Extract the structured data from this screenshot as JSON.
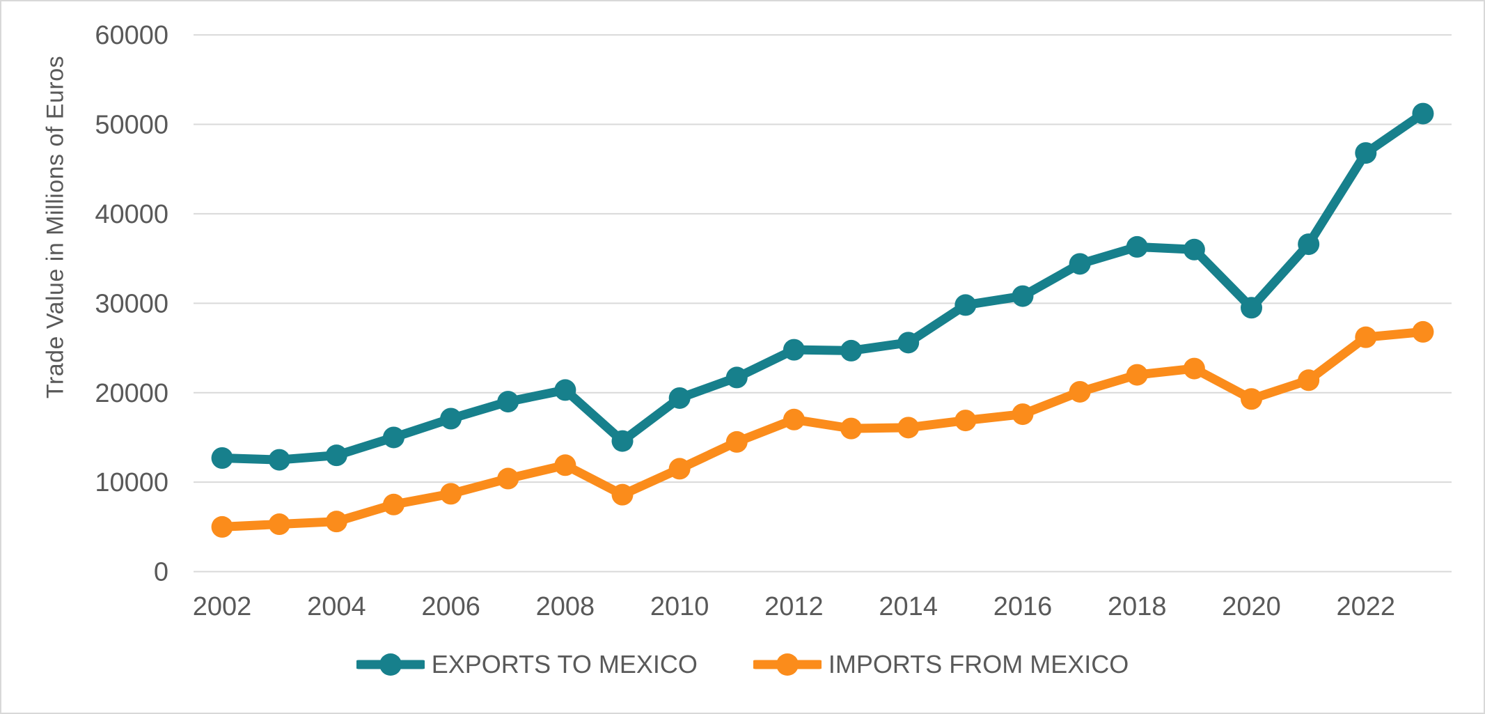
{
  "chart_data": {
    "type": "line",
    "title": "",
    "xlabel": "",
    "ylabel": "Trade Value in Millions of Euros",
    "x": [
      2002,
      2003,
      2004,
      2005,
      2006,
      2007,
      2008,
      2009,
      2010,
      2011,
      2012,
      2013,
      2014,
      2015,
      2016,
      2017,
      2018,
      2019,
      2020,
      2021,
      2022,
      2023
    ],
    "x_tick_labels": [
      "2002",
      "2004",
      "2006",
      "2008",
      "2010",
      "2012",
      "2014",
      "2016",
      "2018",
      "2020",
      "2022"
    ],
    "y_ticks": [
      0,
      10000,
      20000,
      30000,
      40000,
      50000,
      60000
    ],
    "ylim": [
      0,
      60000
    ],
    "grid": true,
    "legend_position": "bottom",
    "series": [
      {
        "name": "EXPORTS TO MEXICO",
        "color": "#17808C",
        "values": [
          12700,
          12500,
          13000,
          15000,
          17100,
          19000,
          20300,
          14600,
          19400,
          21700,
          24800,
          24700,
          25600,
          29800,
          30800,
          34400,
          36300,
          36000,
          29500,
          36600,
          46800,
          51200
        ]
      },
      {
        "name": "IMPORTS FROM MEXICO",
        "color": "#FB8C1B",
        "values": [
          5000,
          5300,
          5600,
          7500,
          8700,
          10400,
          11900,
          8600,
          11500,
          14500,
          17000,
          16000,
          16100,
          16900,
          17600,
          20100,
          22000,
          22700,
          19300,
          21400,
          26200,
          26800
        ]
      }
    ]
  },
  "colors": {
    "grid": "#D9D9D9",
    "axis_text": "#595959",
    "frame_border": "#D8D8D8",
    "background": "#FFFFFF"
  }
}
